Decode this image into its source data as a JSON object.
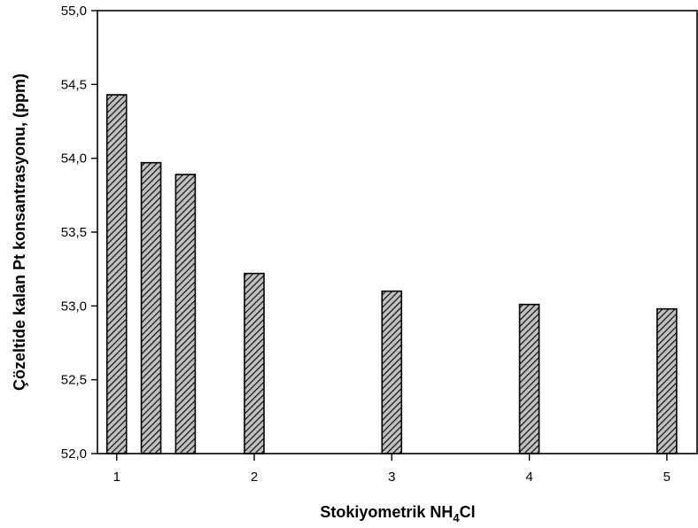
{
  "chart_data": {
    "type": "bar",
    "title": "",
    "xlabel": "Stokiyometrik NH",
    "xlabel_subscript": "4",
    "xlabel_suffix": "Cl",
    "ylabel": "Çözeltide kalan Pt konsantrasyonu, (ppm)",
    "x": [
      1.0,
      1.25,
      1.5,
      2.0,
      3.0,
      4.0,
      5.0
    ],
    "values": [
      54.43,
      53.97,
      53.89,
      53.22,
      53.1,
      53.01,
      52.98
    ],
    "xlim": [
      0.86,
      5.22
    ],
    "ylim": [
      52.0,
      55.0
    ],
    "xticks": [
      1,
      2,
      3,
      4,
      5
    ],
    "xtick_labels": [
      "1",
      "2",
      "3",
      "4",
      "5"
    ],
    "yticks": [
      52.0,
      52.5,
      53.0,
      53.5,
      54.0,
      54.5,
      55.0
    ],
    "ytick_labels": [
      "52,0",
      "52,5",
      "53,0",
      "53,5",
      "54,0",
      "54,5",
      "55,0"
    ],
    "bar_fill": "hatched",
    "hatch_color": "#000000",
    "bar_background": "#bfbfbf",
    "grid": false,
    "legend": "none"
  }
}
